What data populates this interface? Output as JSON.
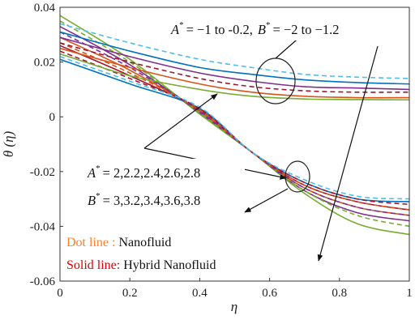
{
  "chart_data": {
    "type": "line",
    "xlabel": "η",
    "ylabel": "θ (η)",
    "xlim": [
      0,
      1
    ],
    "ylim": [
      -0.06,
      0.04
    ],
    "xticks": [
      "0",
      "0.2",
      "0.4",
      "0.6",
      "0.8",
      "1"
    ],
    "yticks": [
      "0.04",
      "0.02",
      "0",
      "-0.02",
      "-0.04",
      "-0.06"
    ],
    "x": [
      0,
      0.2,
      0.4,
      0.55,
      0.7,
      0.85,
      1.0
    ],
    "series": [
      {
        "color": "#77ac30",
        "style": "solid",
        "values": [
          0.037,
          0.021,
          0.001,
          -0.013,
          -0.028,
          -0.039,
          -0.043
        ]
      },
      {
        "color": "#7e2f8e",
        "style": "solid",
        "values": [
          0.033,
          0.019,
          0.0015,
          -0.013,
          -0.027,
          -0.035,
          -0.038
        ]
      },
      {
        "color": "#d95319",
        "style": "solid",
        "values": [
          0.029,
          0.017,
          0.002,
          -0.013,
          -0.026,
          -0.033,
          -0.036
        ]
      },
      {
        "color": "#a2142f",
        "style": "solid",
        "values": [
          0.026,
          0.015,
          0.0025,
          -0.013,
          -0.025,
          -0.031,
          -0.034
        ]
      },
      {
        "color": "#0072bd",
        "style": "solid",
        "values": [
          0.021,
          0.012,
          0.003,
          -0.013,
          -0.024,
          -0.03,
          -0.031
        ]
      },
      {
        "color": "#77ac30",
        "style": "dashed",
        "values": [
          0.035,
          0.02,
          0.0015,
          -0.013,
          -0.027,
          -0.036,
          -0.04
        ]
      },
      {
        "color": "#7e2f8e",
        "style": "dashed",
        "values": [
          0.031,
          0.018,
          0.002,
          -0.013,
          -0.026,
          -0.033,
          -0.036
        ]
      },
      {
        "color": "#d95319",
        "style": "dashed",
        "values": [
          0.027,
          0.016,
          0.0025,
          -0.013,
          -0.025,
          -0.031,
          -0.034
        ]
      },
      {
        "color": "#a2142f",
        "style": "dashed",
        "values": [
          0.024,
          0.014,
          0.003,
          -0.013,
          -0.024,
          -0.03,
          -0.032
        ]
      },
      {
        "color": "#4dbeee",
        "style": "dashed",
        "values": [
          0.022,
          0.013,
          0.0035,
          -0.013,
          -0.023,
          -0.029,
          -0.03
        ]
      },
      {
        "color": "#4dbeee",
        "style": "dashed",
        "values": [
          0.034,
          0.027,
          0.021,
          0.018,
          0.0155,
          0.0145,
          0.014
        ]
      },
      {
        "color": "#0072bd",
        "style": "solid",
        "values": [
          0.031,
          0.024,
          0.018,
          0.0155,
          0.0135,
          0.0125,
          0.012
        ]
      },
      {
        "color": "#7e2f8e",
        "style": "solid",
        "values": [
          0.029,
          0.022,
          0.016,
          0.013,
          0.011,
          0.0105,
          0.01
        ]
      },
      {
        "color": "#a2142f",
        "style": "dashed",
        "values": [
          0.027,
          0.02,
          0.014,
          0.011,
          0.0095,
          0.009,
          0.009
        ]
      },
      {
        "color": "#d95319",
        "style": "solid",
        "values": [
          0.025,
          0.018,
          0.012,
          0.009,
          0.0075,
          0.007,
          0.007
        ]
      },
      {
        "color": "#77ac30",
        "style": "solid",
        "values": [
          0.023,
          0.015,
          0.01,
          0.0075,
          0.0065,
          0.0063,
          0.0062
        ]
      }
    ],
    "annotations": {
      "top_a": "A",
      "top_range": "= −1 to -0.2,",
      "top_b": "B",
      "top_brange": "= −2 to −1.2",
      "mid_a": "A",
      "mid_avals": "= 2,2.2,2.4,2.6,2.8",
      "mid_b": "B",
      "mid_bvals": "= 3,3.2,3.4,3.6,3.8",
      "star": "*"
    },
    "legend": {
      "dot_label": "Dot line   :",
      "dot_text": "Nanofluid",
      "solid_label": "Solid line:",
      "solid_text": "Hybrid Nanofluid",
      "dot_color": "#ff7f27",
      "solid_color": "#e00000"
    }
  }
}
